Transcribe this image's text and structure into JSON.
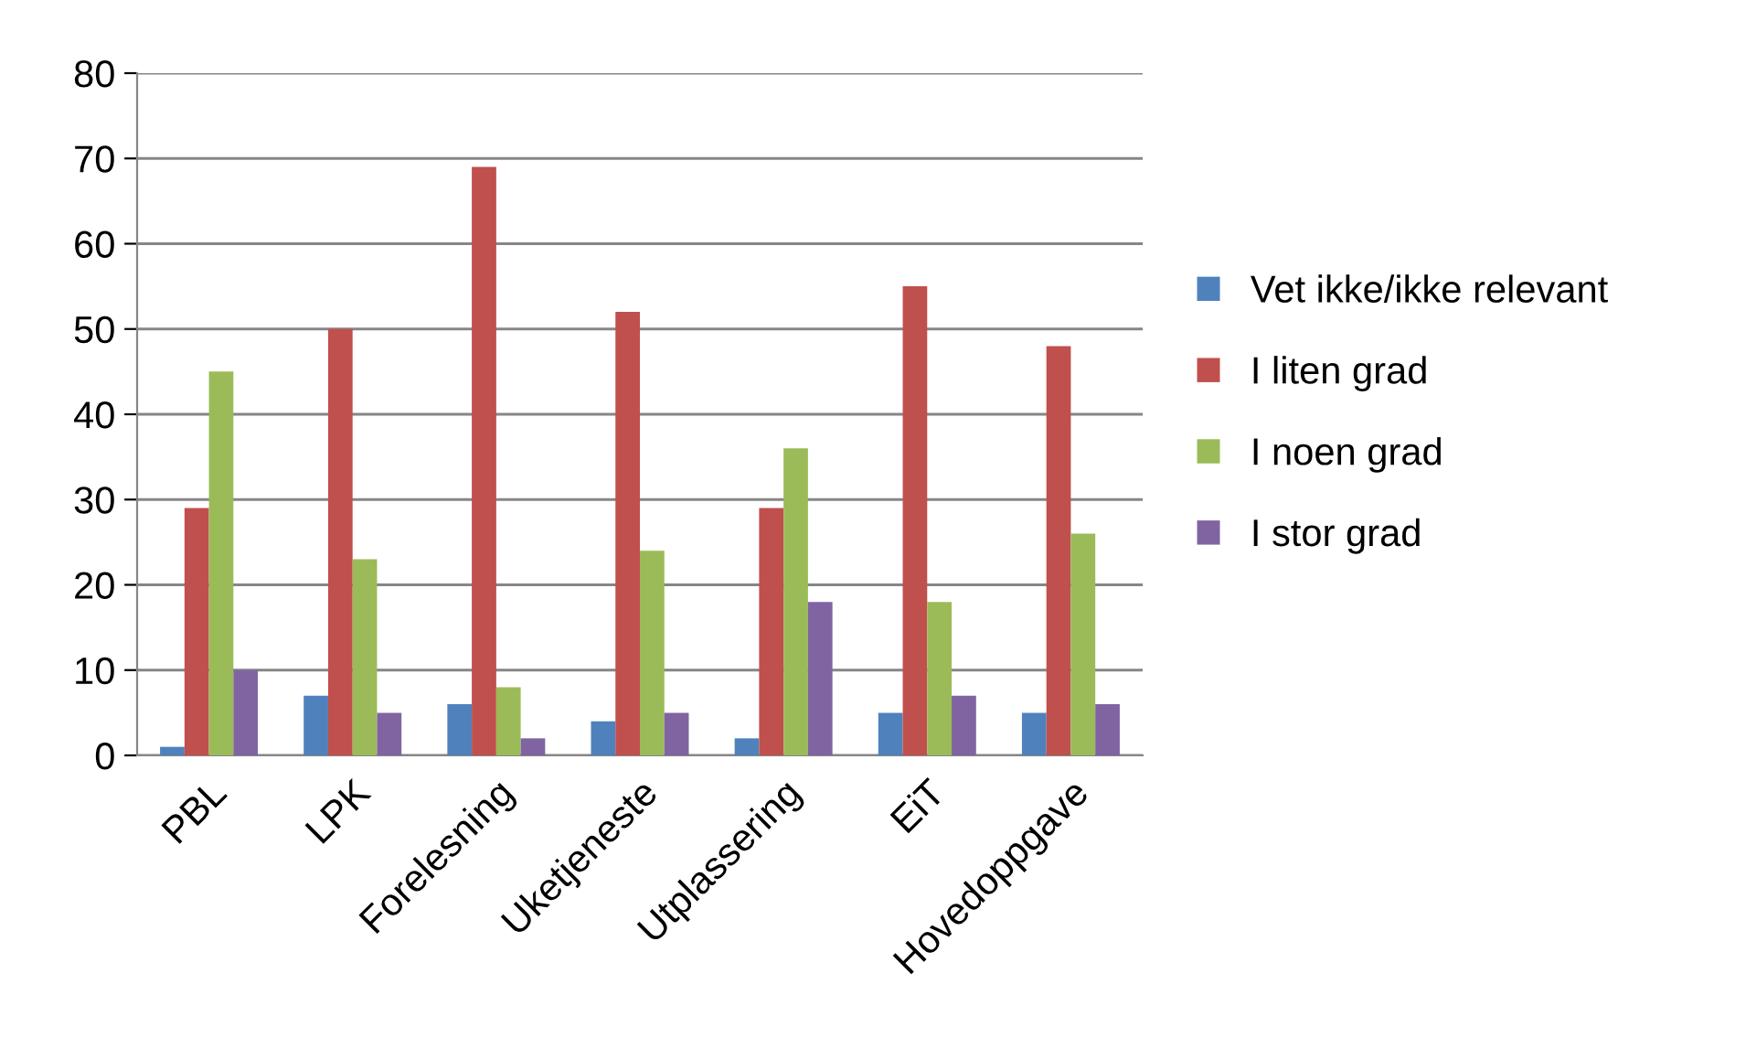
{
  "chart_data": {
    "type": "bar",
    "categories": [
      "PBL",
      "LPK",
      "Forelesning",
      "Uketjeneste",
      "Utplassering",
      "EiT",
      "Hovedoppgave"
    ],
    "series": [
      {
        "name": "Vet ikke/ikke relevant",
        "color": "#4f81bd",
        "values": [
          1,
          7,
          6,
          4,
          2,
          5,
          5
        ]
      },
      {
        "name": "I liten grad",
        "color": "#c0504d",
        "values": [
          29,
          50,
          69,
          52,
          29,
          55,
          48
        ]
      },
      {
        "name": "I noen grad",
        "color": "#9bbb59",
        "values": [
          45,
          23,
          8,
          24,
          36,
          18,
          26
        ]
      },
      {
        "name": "I stor grad",
        "color": "#8064a2",
        "values": [
          10,
          5,
          2,
          5,
          18,
          7,
          6
        ]
      }
    ],
    "ylim": [
      0,
      80
    ],
    "yticks": [
      0,
      10,
      20,
      30,
      40,
      50,
      60,
      70,
      80
    ],
    "grid": "y",
    "legend": "right"
  }
}
